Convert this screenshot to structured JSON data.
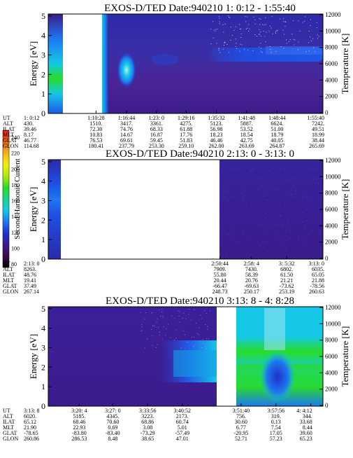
{
  "colorbar": {
    "label": "Second Harmonic Current",
    "ticks": [
      "240",
      "220",
      "200",
      "180",
      "160",
      "140",
      "120",
      "100",
      "80"
    ],
    "colors": [
      "#000000",
      "#3a0a4a",
      "#3b1c8c",
      "#1e32c8",
      "#1e78f0",
      "#14c8e6",
      "#1ed28c",
      "#28dc28",
      "#b4e614",
      "#f0f014",
      "#f0b41e",
      "#f06414",
      "#e61e14"
    ]
  },
  "panels": [
    {
      "title": "EXOS-D/TED   Date:940210  1: 0:12 - 1:55:40",
      "ylabel": "Energy [eV]",
      "y2label": "Temperature [K]",
      "yticks": [
        "0",
        "1",
        "2",
        "3",
        "4",
        "5"
      ],
      "y2ticks": [
        "0",
        "2000",
        "4000",
        "6000",
        "8000",
        "10000",
        "12000"
      ],
      "table_labels": [
        "UT",
        "ALT",
        "ILAT",
        "MLT",
        "GLAT",
        "GLON"
      ],
      "columns": [
        {
          "t": 0,
          "vals": [
            "1: 0:12",
            "430.",
            "39.46",
            "8.17",
            "46.77",
            "114.68"
          ]
        },
        {
          "t": 0.174,
          "vals": [
            "1:10:28",
            "1510.",
            "72.30",
            "10.83",
            "76.53",
            "180.41"
          ]
        },
        {
          "t": 0.285,
          "vals": [
            "1:16:44",
            "3417.",
            "74.76",
            "14.67",
            "69.61",
            "237.79"
          ]
        },
        {
          "t": 0.394,
          "vals": [
            "1:23: 0",
            "3361.",
            "68.33",
            "16.87",
            "59.45",
            "253.30"
          ]
        },
        {
          "t": 0.502,
          "vals": [
            "1:29:16",
            "4275.",
            "61.88",
            "17.76",
            "51.83",
            "259.10"
          ]
        },
        {
          "t": 0.612,
          "vals": [
            "1:35:32",
            "5123.",
            "56.98",
            "18.23",
            "46.46",
            "262.00"
          ]
        },
        {
          "t": 0.722,
          "vals": [
            "1:41:48",
            "5887.",
            "53.52",
            "18.54",
            "42.75",
            "263.69"
          ]
        },
        {
          "t": 0.833,
          "vals": [
            "1:48:44",
            "6624.",
            "51.00",
            "18.79",
            "40.05",
            "264.87"
          ]
        },
        {
          "t": 1,
          "vals": [
            "1:55:40",
            "7242.",
            "49.51",
            "18.99",
            "38.44",
            "265.69"
          ]
        }
      ]
    },
    {
      "title": "EXOS-D/TED   Date:940210  2:13: 0 - 3:13: 0",
      "ylabel": "Energy [eV]",
      "y2label": "Temperature [K]",
      "yticks": [
        "0",
        "1",
        "2",
        "3",
        "4",
        "5"
      ],
      "y2ticks": [
        "0",
        "2000",
        "4000",
        "6000",
        "8000",
        "10000",
        "12000"
      ],
      "table_labels": [
        "UT",
        "ALT",
        "ILAT",
        "MLT",
        "GLAT",
        "GLON"
      ],
      "columns": [
        {
          "t": 0,
          "vals": [
            "2:13: 0",
            "8263.",
            "48.76",
            "19.41",
            "37.49",
            "267.14"
          ]
        },
        {
          "t": 0.625,
          "vals": [
            "2:50:44",
            "7909.",
            "55.80",
            "20.44",
            "-66.47",
            "248.73"
          ]
        },
        {
          "t": 0.74,
          "vals": [
            "2:58: 4",
            "7430.",
            "58.39",
            "20.76",
            "-69.63",
            "250.17"
          ]
        },
        {
          "t": 0.868,
          "vals": [
            "3: 5:32",
            "6802.",
            "61.50",
            "21.21",
            "-73.62",
            "253.19"
          ]
        },
        {
          "t": 1,
          "vals": [
            "3:13: 0",
            "6035.",
            "65.05",
            "21.88",
            "-78.56",
            "260.63"
          ]
        }
      ]
    },
    {
      "title": "EXOS-D/TED   Date:940210  3:13: 8 - 4: 8:28",
      "ylabel": "Energy [eV]",
      "y2label": "Temperature [K]",
      "yticks": [
        "0",
        "1",
        "2",
        "3",
        "4",
        "5"
      ],
      "y2ticks": [
        "0",
        "2000",
        "4000",
        "6000",
        "8000",
        "10000",
        "12000"
      ],
      "table_labels": [
        "UT",
        "ALT",
        "ILAT",
        "MLT",
        "GLAT",
        "GLON"
      ],
      "columns": [
        {
          "t": 0,
          "vals": [
            "3:13: 8",
            "6020.",
            "65.12",
            "21.90",
            "-78.65",
            "260.86"
          ]
        },
        {
          "t": 0.113,
          "vals": [
            "3:20: 4",
            "5185.",
            "68.46",
            "22.93",
            "-83.80",
            "286.53"
          ]
        },
        {
          "t": 0.235,
          "vals": [
            "3:27: 0",
            "4345.",
            "70.60",
            "0.69",
            "-83.40",
            "8.48"
          ]
        },
        {
          "t": 0.362,
          "vals": [
            "3:33:56",
            "3223.",
            "68.86",
            "3.08",
            "-73.29",
            "38.65"
          ]
        },
        {
          "t": 0.488,
          "vals": [
            "3:40:52",
            "2173.",
            "60.74",
            "5.01",
            "-57.49",
            "47.01"
          ]
        },
        {
          "t": 0.702,
          "vals": [
            "3:51:40",
            "756.",
            "30.60",
            "6.77",
            "-20.95",
            "52.71"
          ]
        },
        {
          "t": 0.829,
          "vals": [
            "3:57:56",
            "319.",
            "0.13",
            "7.54",
            "17.05",
            "57.23"
          ]
        },
        {
          "t": 0.956,
          "vals": [
            "4: 4:12",
            "344.",
            "33.68",
            "8.44",
            "39.60",
            "65.23"
          ]
        }
      ]
    }
  ],
  "chart_data": [
    {
      "type": "heatmap",
      "title": "EXOS-D/TED   Date:940210  1: 0:12 - 1:55:40",
      "ylabel": "Energy [eV]",
      "y2label": "Temperature [K]",
      "ylim": [
        0,
        5.1
      ],
      "y2lim": [
        0,
        12000
      ],
      "x": [
        "1: 0:12",
        "1:10:28",
        "1:16:44",
        "1:23: 0",
        "1:29:16",
        "1:35:32",
        "1:41:48",
        "1:48:44",
        "1:55:40"
      ],
      "data_gap": [
        "1: 0:50",
        "1:10:20"
      ]
    },
    {
      "type": "heatmap",
      "title": "EXOS-D/TED   Date:940210  2:13: 0 - 3:13: 0",
      "ylabel": "Energy [eV]",
      "y2label": "Temperature [K]",
      "ylim": [
        0,
        5.1
      ],
      "y2lim": [
        0,
        12000
      ],
      "x": [
        "2:13: 0",
        "2:50:44",
        "2:58: 4",
        "3: 5:32",
        "3:13: 0"
      ],
      "data_gap": [
        "2:14:20",
        "2:50:40"
      ]
    },
    {
      "type": "heatmap",
      "title": "EXOS-D/TED   Date:940210  3:13: 8 - 4: 8:28",
      "ylabel": "Energy [eV]",
      "y2label": "Temperature [K]",
      "ylim": [
        0,
        5.1
      ],
      "y2lim": [
        0,
        12000
      ],
      "x": [
        "3:13: 8",
        "3:20: 4",
        "3:27: 0",
        "3:33:56",
        "3:40:52",
        "3:51:40",
        "3:57:56",
        "4: 4:12"
      ],
      "data_gap": [
        "3:45:50",
        "3:50:30"
      ]
    }
  ]
}
